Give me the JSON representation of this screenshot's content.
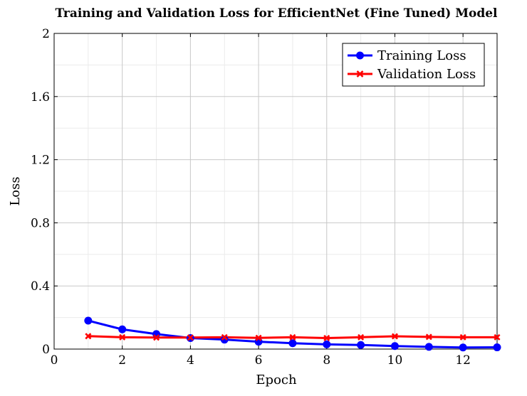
{
  "chart_data": {
    "type": "line",
    "title": "Training and Validation Loss for EfficientNet (Fine Tuned) Model",
    "xlabel": "Epoch",
    "ylabel": "Loss",
    "xlim": [
      0,
      13
    ],
    "ylim": [
      0,
      2
    ],
    "xticks": [
      0,
      2,
      4,
      6,
      8,
      10,
      12
    ],
    "yticks": [
      0,
      0.4,
      0.8,
      1.2,
      1.6,
      2
    ],
    "ytick_labels": [
      "0",
      "0.4",
      "0.8",
      "1.2",
      "1.6",
      "2"
    ],
    "grid": true,
    "legend_position": "top-right",
    "x": [
      1,
      2,
      3,
      4,
      5,
      6,
      7,
      8,
      9,
      10,
      11,
      12,
      13
    ],
    "series": [
      {
        "name": "Training Loss",
        "color": "#0000ff",
        "marker": "circle",
        "values": [
          0.18,
          0.125,
          0.095,
          0.07,
          0.06,
          0.047,
          0.037,
          0.03,
          0.026,
          0.019,
          0.014,
          0.01,
          0.011
        ]
      },
      {
        "name": "Validation Loss",
        "color": "#ff0000",
        "marker": "x",
        "values": [
          0.082,
          0.075,
          0.073,
          0.073,
          0.075,
          0.071,
          0.075,
          0.07,
          0.075,
          0.081,
          0.077,
          0.075,
          0.075
        ]
      }
    ]
  }
}
